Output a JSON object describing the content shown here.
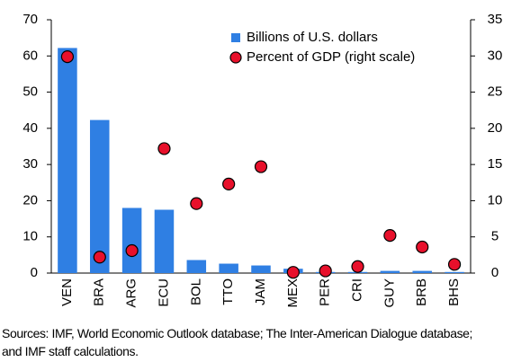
{
  "chart_data": {
    "type": "bar_dot",
    "categories": [
      "VEN",
      "BRA",
      "ARG",
      "ECU",
      "BOL",
      "TTO",
      "JAM",
      "MEX",
      "PER",
      "CRI",
      "GUY",
      "BRB",
      "BHS"
    ],
    "series": [
      {
        "name": "Billions of U.S. dollars",
        "type": "bar",
        "color": "#2f7fe3",
        "values": [
          62.2,
          42.3,
          18.0,
          17.5,
          3.6,
          2.6,
          2.1,
          1.2,
          0.3,
          0.3,
          0.6,
          0.6,
          0.3
        ]
      },
      {
        "name": "Percent of GDP (right scale)",
        "type": "dot",
        "axis": "y2",
        "color": "#e8102b",
        "values": [
          29.9,
          2.2,
          3.1,
          17.2,
          9.6,
          12.3,
          14.7,
          0.1,
          0.3,
          0.9,
          5.2,
          3.6,
          1.2
        ]
      }
    ],
    "ylim": [
      0,
      70
    ],
    "yticks": [
      0,
      10,
      20,
      30,
      40,
      50,
      60,
      70
    ],
    "y2lim": [
      0,
      35
    ],
    "y2ticks": [
      0,
      5,
      10,
      15,
      20,
      25,
      30,
      35
    ],
    "grid": false,
    "note": "Sources: IMF, World Economic Outlook database; The Inter-American Dialogue database; and IMF staff calculations."
  }
}
